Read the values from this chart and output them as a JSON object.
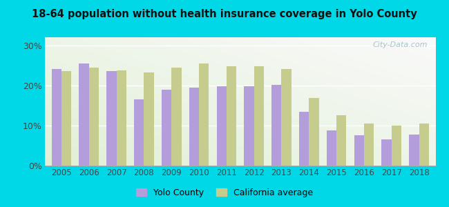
{
  "title": "18-64 population without health insurance coverage in Yolo County",
  "years": [
    2005,
    2006,
    2007,
    2008,
    2009,
    2010,
    2011,
    2012,
    2013,
    2014,
    2015,
    2016,
    2017,
    2018
  ],
  "yolo": [
    24.0,
    25.5,
    23.5,
    16.5,
    19.0,
    19.5,
    19.7,
    19.7,
    20.2,
    13.5,
    8.8,
    7.5,
    6.5,
    7.8
  ],
  "california": [
    23.5,
    24.5,
    23.7,
    23.3,
    24.5,
    25.5,
    24.8,
    24.8,
    24.0,
    16.8,
    12.5,
    10.5,
    10.0,
    10.5
  ],
  "yolo_color": "#b39ddb",
  "california_color": "#c5cc8e",
  "background_outer": "#00d8e8",
  "ylabel_ticks": [
    "0%",
    "10%",
    "20%",
    "30%"
  ],
  "yticks": [
    0,
    10,
    20,
    30
  ],
  "ylim": [
    0,
    32
  ],
  "watermark": "City-Data.com",
  "legend_yolo": "Yolo County",
  "legend_ca": "California average"
}
